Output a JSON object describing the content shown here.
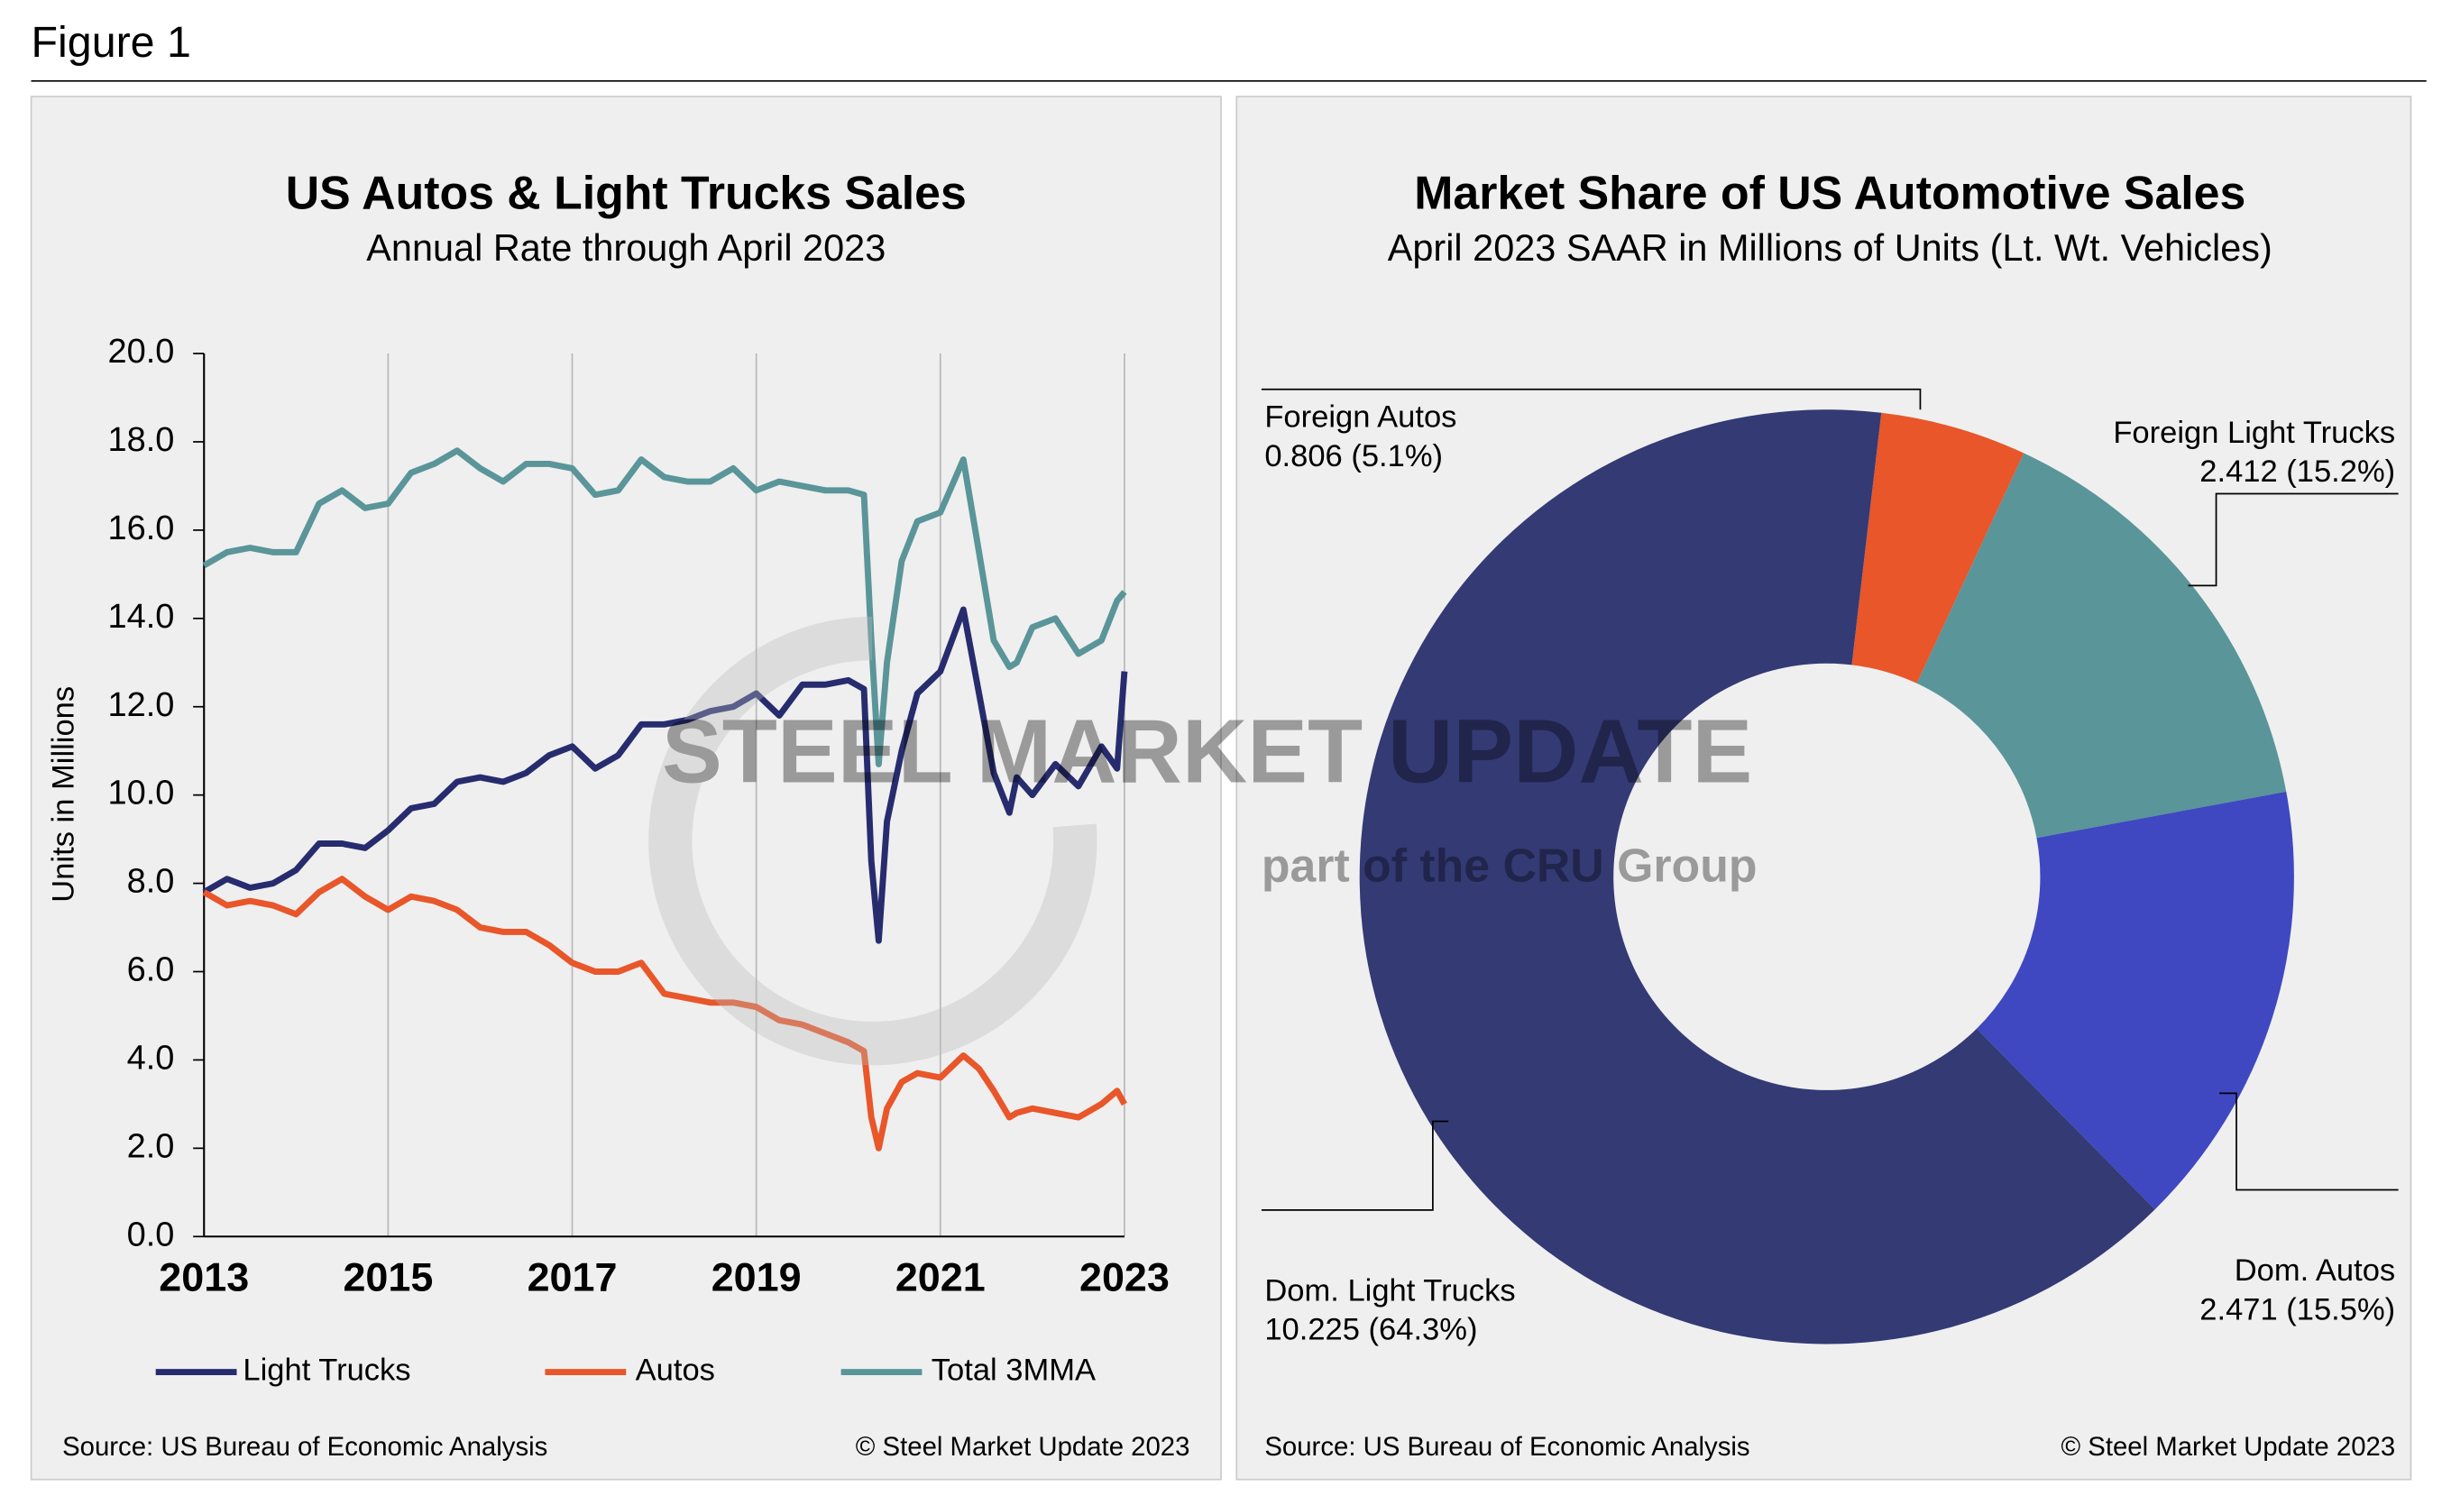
{
  "figure_title": "Figure 1",
  "watermark": {
    "brand": "STEEL MARKET UPDATE",
    "group": "part of the CRU Group"
  },
  "chart_data": [
    {
      "type": "line",
      "title": "US Autos & Light Trucks Sales",
      "subtitle": "Annual Rate through April 2023",
      "y_label": "Units in Millions",
      "x": [
        2013.0,
        2013.25,
        2013.5,
        2013.75,
        2014.0,
        2014.25,
        2014.5,
        2014.75,
        2015.0,
        2015.25,
        2015.5,
        2015.75,
        2016.0,
        2016.25,
        2016.5,
        2016.75,
        2017.0,
        2017.25,
        2017.5,
        2017.75,
        2018.0,
        2018.25,
        2018.5,
        2018.75,
        2019.0,
        2019.25,
        2019.5,
        2019.75,
        2020.0,
        2020.17,
        2020.25,
        2020.33,
        2020.42,
        2020.58,
        2020.75,
        2021.0,
        2021.25,
        2021.42,
        2021.58,
        2021.75,
        2021.83,
        2022.0,
        2022.25,
        2022.5,
        2022.75,
        2022.92,
        2023.0
      ],
      "series": [
        {
          "name": "Light Trucks",
          "color": "#262c6e",
          "values": [
            7.8,
            8.1,
            7.9,
            8.0,
            8.3,
            8.9,
            8.9,
            8.8,
            9.2,
            9.7,
            9.8,
            10.3,
            10.4,
            10.3,
            10.5,
            10.9,
            11.1,
            10.6,
            10.9,
            11.6,
            11.6,
            11.7,
            11.9,
            12.0,
            12.3,
            11.8,
            12.5,
            12.5,
            12.6,
            12.4,
            8.5,
            6.7,
            9.4,
            11.0,
            12.3,
            12.8,
            14.2,
            12.3,
            10.5,
            9.6,
            10.4,
            10.0,
            10.7,
            10.2,
            11.1,
            10.6,
            12.8
          ]
        },
        {
          "name": "Autos",
          "color": "#e8562a",
          "values": [
            7.8,
            7.5,
            7.6,
            7.5,
            7.3,
            7.8,
            8.1,
            7.7,
            7.4,
            7.7,
            7.6,
            7.4,
            7.0,
            6.9,
            6.9,
            6.6,
            6.2,
            6.0,
            6.0,
            6.2,
            5.5,
            5.4,
            5.3,
            5.3,
            5.2,
            4.9,
            4.8,
            4.6,
            4.4,
            4.2,
            2.7,
            2.0,
            2.9,
            3.5,
            3.7,
            3.6,
            4.1,
            3.8,
            3.3,
            2.7,
            2.8,
            2.9,
            2.8,
            2.7,
            3.0,
            3.3,
            3.0
          ]
        },
        {
          "name": "Total 3MMA",
          "color": "#5a9599",
          "values": [
            15.2,
            15.5,
            15.6,
            15.5,
            15.5,
            16.6,
            16.9,
            16.5,
            16.6,
            17.3,
            17.5,
            17.8,
            17.4,
            17.1,
            17.5,
            17.5,
            17.4,
            16.8,
            16.9,
            17.6,
            17.2,
            17.1,
            17.1,
            17.4,
            16.9,
            17.1,
            17.0,
            16.9,
            16.9,
            16.8,
            13.5,
            10.7,
            13.0,
            15.3,
            16.2,
            16.4,
            17.6,
            15.5,
            13.5,
            12.9,
            13.0,
            13.8,
            14.0,
            13.2,
            13.5,
            14.4,
            14.6
          ]
        }
      ],
      "xlim": [
        2013,
        2023
      ],
      "xticks": [
        2013,
        2015,
        2017,
        2019,
        2021,
        2023
      ],
      "ylim": [
        0,
        20
      ],
      "yticks": [
        {
          "value": 0,
          "label": "0.0"
        },
        {
          "value": 2,
          "label": "2.0"
        },
        {
          "value": 4,
          "label": "4.0"
        },
        {
          "value": 6,
          "label": "6.0"
        },
        {
          "value": 8,
          "label": "8.0"
        },
        {
          "value": 10,
          "label": "10.0"
        },
        {
          "value": 12,
          "label": "12.0"
        },
        {
          "value": 14,
          "label": "14.0"
        },
        {
          "value": 16,
          "label": "16.0"
        },
        {
          "value": 18,
          "label": "18.0"
        },
        {
          "value": 20,
          "label": "20.0"
        }
      ],
      "grid": "x",
      "legend": "bottom",
      "source": "Source: US Bureau of Economic Analysis",
      "copyright": "© Steel Market Update 2023"
    },
    {
      "type": "donut",
      "title": "Market Share of US Automotive Sales",
      "subtitle": "April 2023 SAAR in Millions of Units (Lt. Wt. Vehicles)",
      "categories": [
        "Foreign Autos",
        "Foreign Light Trucks",
        "Dom. Autos",
        "Dom. Light Trucks"
      ],
      "values": [
        0.806,
        2.412,
        2.471,
        10.225
      ],
      "value_labels": [
        "0.806 (5.1%)",
        "2.412 (15.2%)",
        "2.471 (15.5%)",
        "10.225 (64.3%)"
      ],
      "colors": [
        "#e8562a",
        "#5a9599",
        "#3f48c0",
        "#333a74"
      ],
      "source": "Source: US Bureau of Economic Analysis",
      "copyright": "© Steel Market Update 2023"
    }
  ]
}
